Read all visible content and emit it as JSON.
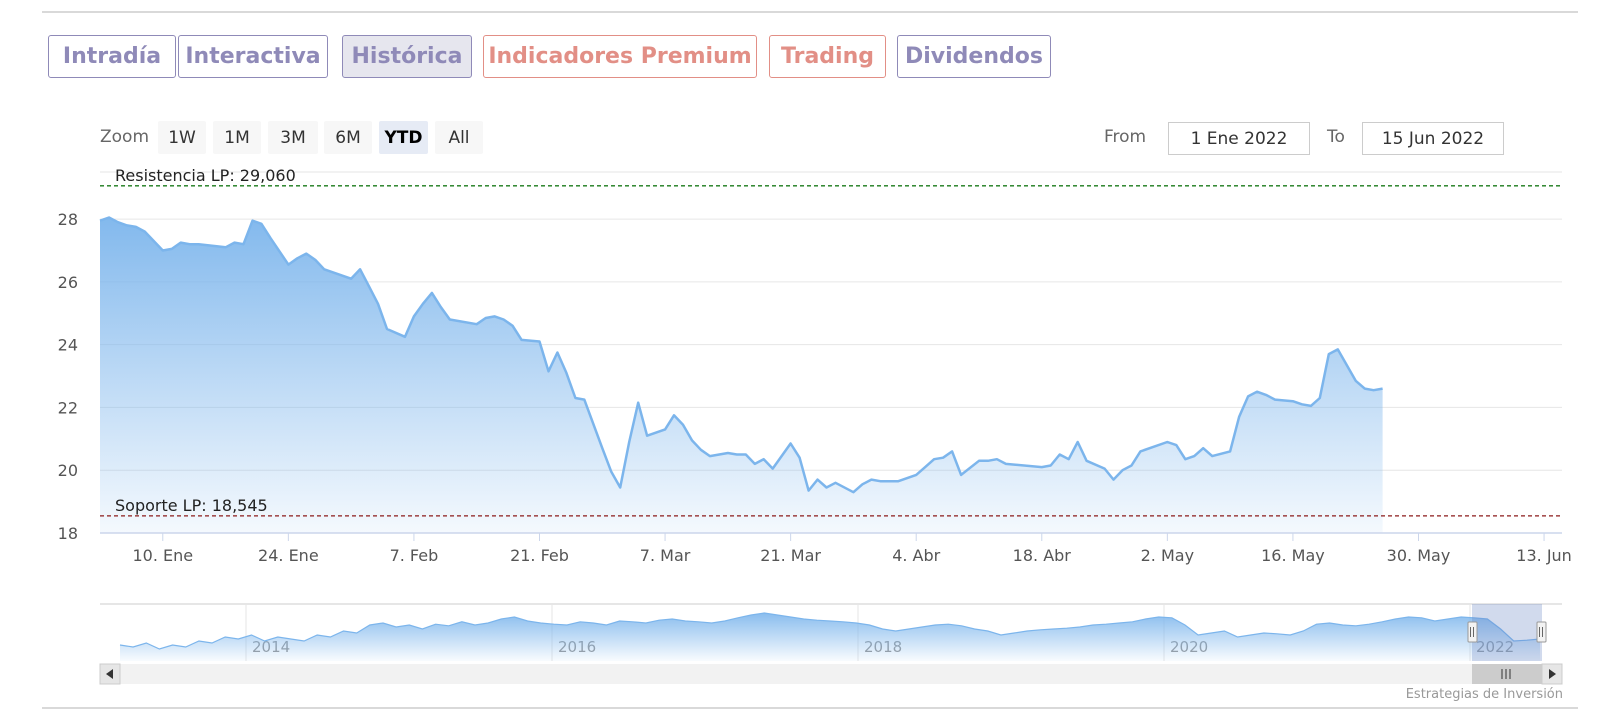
{
  "tabs": [
    {
      "label": "Intradía",
      "color": "#8f8ab8",
      "active": false
    },
    {
      "label": "Interactiva",
      "color": "#8f8ab8",
      "active": false
    },
    {
      "label": "Histórica",
      "color": "#8f8ab8",
      "active": true
    },
    {
      "label": "Indicadores Premium",
      "color": "#e28f86",
      "active": false
    },
    {
      "label": "Trading",
      "color": "#e28f86",
      "active": false
    },
    {
      "label": "Dividendos",
      "color": "#8f8ab8",
      "active": false
    }
  ],
  "zoom": {
    "label": "Zoom",
    "buttons": [
      "1W",
      "1M",
      "3M",
      "6M",
      "YTD",
      "All"
    ],
    "selected": "YTD"
  },
  "range": {
    "from_label": "From",
    "from_value": "1 Ene 2022",
    "to_label": "To",
    "to_value": "15 Jun 2022"
  },
  "credit": "Estrategias de Inversión",
  "chart_data": {
    "type": "area",
    "ylim": [
      18,
      29.5
    ],
    "yticks": [
      18,
      20,
      22,
      24,
      26,
      28
    ],
    "xlim": [
      "2022-01-03",
      "2022-06-15"
    ],
    "xticks": [
      {
        "date": "2022-01-10",
        "label": "10. Ene"
      },
      {
        "date": "2022-01-24",
        "label": "24. Ene"
      },
      {
        "date": "2022-02-07",
        "label": "7. Feb"
      },
      {
        "date": "2022-02-21",
        "label": "21. Feb"
      },
      {
        "date": "2022-03-07",
        "label": "7. Mar"
      },
      {
        "date": "2022-03-21",
        "label": "21. Mar"
      },
      {
        "date": "2022-04-04",
        "label": "4. Abr"
      },
      {
        "date": "2022-04-18",
        "label": "18. Abr"
      },
      {
        "date": "2022-05-02",
        "label": "2. May"
      },
      {
        "date": "2022-05-16",
        "label": "16. May"
      },
      {
        "date": "2022-05-30",
        "label": "30. May"
      },
      {
        "date": "2022-06-13",
        "label": "13. Jun"
      }
    ],
    "plot_lines": [
      {
        "label": "Resistencia LP: 29,060",
        "value": 29.06,
        "color": "#1a7a1a"
      },
      {
        "label": "Soporte LP: 18,545",
        "value": 18.545,
        "color": "#8b1a1a"
      }
    ],
    "series": [
      {
        "line_color": "#7cb5ec",
        "points": [
          [
            "2022-01-03",
            27.95
          ],
          [
            "2022-01-04",
            28.05
          ],
          [
            "2022-01-05",
            27.9
          ],
          [
            "2022-01-06",
            27.8
          ],
          [
            "2022-01-07",
            27.75
          ],
          [
            "2022-01-08",
            27.6
          ],
          [
            "2022-01-10",
            27.0
          ],
          [
            "2022-01-11",
            27.05
          ],
          [
            "2022-01-12",
            27.25
          ],
          [
            "2022-01-13",
            27.2
          ],
          [
            "2022-01-14",
            27.2
          ],
          [
            "2022-01-17",
            27.1
          ],
          [
            "2022-01-18",
            27.25
          ],
          [
            "2022-01-19",
            27.2
          ],
          [
            "2022-01-20",
            27.95
          ],
          [
            "2022-01-21",
            27.85
          ],
          [
            "2022-01-22",
            27.4
          ],
          [
            "2022-01-24",
            26.55
          ],
          [
            "2022-01-25",
            26.75
          ],
          [
            "2022-01-26",
            26.9
          ],
          [
            "2022-01-27",
            26.7
          ],
          [
            "2022-01-28",
            26.4
          ],
          [
            "2022-01-31",
            26.1
          ],
          [
            "2022-02-01",
            26.4
          ],
          [
            "2022-02-02",
            25.85
          ],
          [
            "2022-02-03",
            25.3
          ],
          [
            "2022-02-04",
            24.5
          ],
          [
            "2022-02-06",
            24.25
          ],
          [
            "2022-02-07",
            24.9
          ],
          [
            "2022-02-08",
            25.3
          ],
          [
            "2022-02-09",
            25.65
          ],
          [
            "2022-02-10",
            25.2
          ],
          [
            "2022-02-11",
            24.8
          ],
          [
            "2022-02-14",
            24.65
          ],
          [
            "2022-02-15",
            24.85
          ],
          [
            "2022-02-16",
            24.9
          ],
          [
            "2022-02-17",
            24.8
          ],
          [
            "2022-02-18",
            24.6
          ],
          [
            "2022-02-19",
            24.15
          ],
          [
            "2022-02-21",
            24.1
          ],
          [
            "2022-02-22",
            23.15
          ],
          [
            "2022-02-23",
            23.75
          ],
          [
            "2022-02-24",
            23.1
          ],
          [
            "2022-02-25",
            22.3
          ],
          [
            "2022-02-26",
            22.25
          ],
          [
            "2022-02-28",
            20.7
          ],
          [
            "2022-03-01",
            19.95
          ],
          [
            "2022-03-02",
            19.45
          ],
          [
            "2022-03-03",
            20.9
          ],
          [
            "2022-03-04",
            22.15
          ],
          [
            "2022-03-05",
            21.1
          ],
          [
            "2022-03-07",
            21.3
          ],
          [
            "2022-03-08",
            21.75
          ],
          [
            "2022-03-09",
            21.45
          ],
          [
            "2022-03-10",
            20.95
          ],
          [
            "2022-03-11",
            20.65
          ],
          [
            "2022-03-12",
            20.45
          ],
          [
            "2022-03-14",
            20.55
          ],
          [
            "2022-03-15",
            20.5
          ],
          [
            "2022-03-16",
            20.5
          ],
          [
            "2022-03-17",
            20.2
          ],
          [
            "2022-03-18",
            20.35
          ],
          [
            "2022-03-19",
            20.05
          ],
          [
            "2022-03-21",
            20.85
          ],
          [
            "2022-03-22",
            20.4
          ],
          [
            "2022-03-23",
            19.35
          ],
          [
            "2022-03-24",
            19.7
          ],
          [
            "2022-03-25",
            19.45
          ],
          [
            "2022-03-26",
            19.6
          ],
          [
            "2022-03-28",
            19.3
          ],
          [
            "2022-03-29",
            19.55
          ],
          [
            "2022-03-30",
            19.7
          ],
          [
            "2022-03-31",
            19.65
          ],
          [
            "2022-04-02",
            19.65
          ],
          [
            "2022-04-04",
            19.85
          ],
          [
            "2022-04-05",
            20.1
          ],
          [
            "2022-04-06",
            20.35
          ],
          [
            "2022-04-07",
            20.4
          ],
          [
            "2022-04-08",
            20.6
          ],
          [
            "2022-04-09",
            19.85
          ],
          [
            "2022-04-11",
            20.3
          ],
          [
            "2022-04-12",
            20.3
          ],
          [
            "2022-04-13",
            20.35
          ],
          [
            "2022-04-14",
            20.2
          ],
          [
            "2022-04-18",
            20.1
          ],
          [
            "2022-04-19",
            20.15
          ],
          [
            "2022-04-20",
            20.5
          ],
          [
            "2022-04-21",
            20.35
          ],
          [
            "2022-04-22",
            20.9
          ],
          [
            "2022-04-23",
            20.3
          ],
          [
            "2022-04-25",
            20.05
          ],
          [
            "2022-04-26",
            19.7
          ],
          [
            "2022-04-27",
            20.0
          ],
          [
            "2022-04-28",
            20.15
          ],
          [
            "2022-04-29",
            20.6
          ],
          [
            "2022-05-02",
            20.9
          ],
          [
            "2022-05-03",
            20.8
          ],
          [
            "2022-05-04",
            20.35
          ],
          [
            "2022-05-05",
            20.45
          ],
          [
            "2022-05-06",
            20.7
          ],
          [
            "2022-05-07",
            20.45
          ],
          [
            "2022-05-09",
            20.6
          ],
          [
            "2022-05-10",
            21.7
          ],
          [
            "2022-05-11",
            22.35
          ],
          [
            "2022-05-12",
            22.5
          ],
          [
            "2022-05-13",
            22.4
          ],
          [
            "2022-05-14",
            22.25
          ],
          [
            "2022-05-16",
            22.2
          ],
          [
            "2022-05-17",
            22.1
          ],
          [
            "2022-05-18",
            22.05
          ],
          [
            "2022-05-19",
            22.3
          ],
          [
            "2022-05-20",
            23.7
          ],
          [
            "2022-05-21",
            23.85
          ],
          [
            "2022-05-23",
            22.85
          ],
          [
            "2022-05-24",
            22.6
          ],
          [
            "2022-05-25",
            22.55
          ],
          [
            "2022-05-26",
            22.6
          ]
        ]
      }
    ],
    "navigator": {
      "xlabels": [
        "2014",
        "2016",
        "2018",
        "2020",
        "2022"
      ]
    }
  }
}
